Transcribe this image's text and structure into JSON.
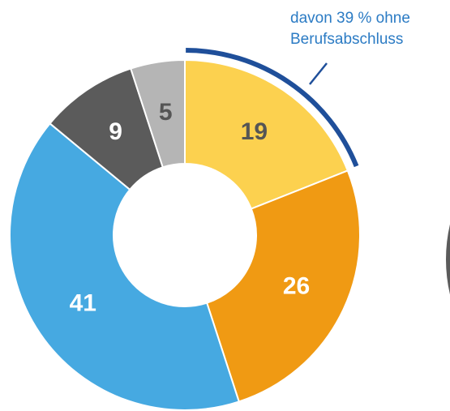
{
  "chart_data": {
    "type": "donut",
    "values": [
      19,
      26,
      41,
      9,
      5
    ],
    "colors": [
      "#fcd14f",
      "#f09a13",
      "#46a9e1",
      "#5b5b5b",
      "#b5b5b5"
    ],
    "label_colors": [
      "#555555",
      "#ffffff",
      "#ffffff",
      "#ffffff",
      "#555555"
    ],
    "annotation": [
      "davon 39 % ohne",
      "Berufsabschluss"
    ]
  }
}
